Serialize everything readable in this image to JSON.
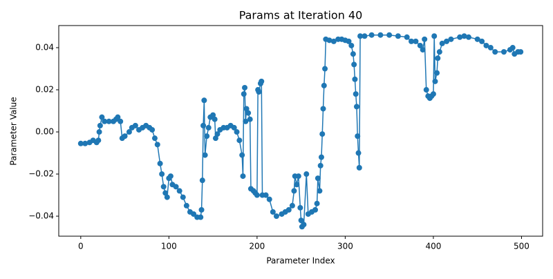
{
  "chart_data": {
    "type": "line",
    "title": "Params at Iteration 40",
    "x_label": "Parameter Index",
    "y_label": "Parameter Value",
    "xlim": [
      -24.95,
      523.95
    ],
    "ylim": [
      -0.0495,
      0.0505
    ],
    "xticks": [
      0,
      100,
      200,
      300,
      400,
      500
    ],
    "yticks": [
      {
        "value": -0.04,
        "label": "−0.04"
      },
      {
        "value": -0.02,
        "label": "−0.02"
      },
      {
        "value": 0,
        "label": "0.00"
      },
      {
        "value": 0.02,
        "label": "0.02"
      },
      {
        "value": 0.04,
        "label": "0.04"
      }
    ],
    "grid": false,
    "series": [
      {
        "color": "#1f77b4",
        "x": [
          0,
          5,
          10,
          14,
          18,
          20,
          21,
          22,
          24,
          27,
          32,
          37,
          40,
          42,
          45,
          47,
          50,
          55,
          58,
          62,
          66,
          70,
          74,
          78,
          81,
          84,
          87,
          90,
          92,
          94,
          96,
          98,
          100,
          102,
          104,
          108,
          112,
          116,
          120,
          124,
          128,
          132,
          136,
          137,
          138,
          139,
          140,
          141,
          143,
          145,
          147,
          150,
          152,
          153,
          155,
          158,
          162,
          166,
          170,
          174,
          177,
          180,
          183,
          184,
          185,
          186,
          187,
          188,
          190,
          192,
          193,
          196,
          198,
          200,
          201,
          202,
          204,
          205,
          206,
          210,
          214,
          218,
          222,
          228,
          232,
          236,
          240,
          242,
          243,
          245,
          247,
          249,
          250,
          251,
          253,
          256,
          258,
          262,
          266,
          268,
          269,
          271,
          272,
          273,
          274,
          275,
          276,
          277,
          278,
          282,
          287,
          292,
          296,
          300,
          304,
          307,
          309,
          310,
          311,
          312,
          313,
          314,
          315,
          316,
          317,
          322,
          330,
          340,
          350,
          360,
          370,
          375,
          380,
          385,
          388,
          390,
          392,
          394,
          396,
          398,
          400,
          401,
          402,
          404,
          405,
          407,
          410,
          415,
          420,
          430,
          435,
          440,
          450,
          455,
          460,
          465,
          470,
          480,
          487,
          490,
          492,
          496,
          499
        ],
        "values": [
          -0.0055,
          -0.0055,
          -0.005,
          -0.004,
          -0.005,
          -0.004,
          0.0,
          0.003,
          0.007,
          0.005,
          0.005,
          0.005,
          0.006,
          0.007,
          0.005,
          -0.003,
          -0.002,
          0.0,
          0.002,
          0.003,
          0.001,
          0.002,
          0.003,
          0.002,
          0.001,
          -0.003,
          -0.006,
          -0.015,
          -0.02,
          -0.026,
          -0.029,
          -0.031,
          -0.022,
          -0.021,
          -0.025,
          -0.026,
          -0.028,
          -0.031,
          -0.035,
          -0.038,
          -0.039,
          -0.0405,
          -0.0405,
          -0.037,
          -0.023,
          0.003,
          0.015,
          -0.011,
          -0.002,
          0.002,
          0.007,
          0.008,
          0.006,
          -0.003,
          -0.001,
          0.001,
          0.002,
          0.002,
          0.003,
          0.002,
          0.0,
          -0.004,
          -0.011,
          -0.021,
          0.018,
          0.021,
          0.005,
          0.011,
          0.009,
          0.006,
          -0.027,
          -0.028,
          -0.029,
          -0.03,
          0.02,
          0.019,
          0.023,
          0.024,
          -0.03,
          -0.03,
          -0.032,
          -0.038,
          -0.04,
          -0.039,
          -0.038,
          -0.037,
          -0.035,
          -0.028,
          -0.021,
          -0.025,
          -0.021,
          -0.036,
          -0.042,
          -0.045,
          -0.044,
          -0.02,
          -0.039,
          -0.038,
          -0.037,
          -0.034,
          -0.022,
          -0.028,
          -0.016,
          -0.012,
          -0.001,
          0.011,
          0.022,
          0.03,
          0.044,
          0.0435,
          0.043,
          0.044,
          0.044,
          0.0435,
          0.043,
          0.041,
          0.037,
          0.032,
          0.025,
          0.018,
          0.012,
          -0.002,
          -0.01,
          -0.017,
          0.0455,
          0.0455,
          0.046,
          0.046,
          0.046,
          0.0455,
          0.045,
          0.043,
          0.043,
          0.041,
          0.039,
          0.044,
          0.02,
          0.017,
          0.016,
          0.017,
          0.018,
          0.0455,
          0.024,
          0.028,
          0.035,
          0.038,
          0.042,
          0.043,
          0.044,
          0.045,
          0.0455,
          0.045,
          0.044,
          0.043,
          0.041,
          0.04,
          0.038,
          0.038,
          0.039,
          0.04,
          0.037,
          0.038,
          0.038
        ]
      }
    ]
  }
}
